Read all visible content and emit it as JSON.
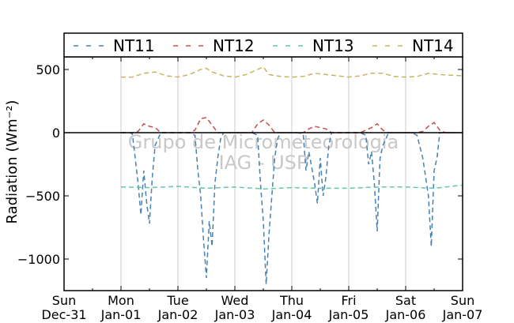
{
  "chart_data": {
    "type": "line",
    "ylabel": "Radiation (Wm⁻²)",
    "ylim": [
      -1250,
      600
    ],
    "xlim": [
      0,
      7
    ],
    "y_ticks": [
      500,
      0,
      -500,
      -1000
    ],
    "y_tick_labels": [
      "500",
      "0",
      "−500",
      "−1000"
    ],
    "x_ticks": [
      {
        "x": 0,
        "day": "Sun",
        "date": "Dec-31"
      },
      {
        "x": 1,
        "day": "Mon",
        "date": "Jan-01"
      },
      {
        "x": 2,
        "day": "Tue",
        "date": "Jan-02"
      },
      {
        "x": 3,
        "day": "Wed",
        "date": "Jan-03"
      },
      {
        "x": 4,
        "day": "Thu",
        "date": "Jan-04"
      },
      {
        "x": 5,
        "day": "Fri",
        "date": "Jan-05"
      },
      {
        "x": 6,
        "day": "Sat",
        "date": "Jan-06"
      },
      {
        "x": 7,
        "day": "Sun",
        "date": "Jan-07"
      }
    ],
    "grid": "vertical",
    "legend_position": "top",
    "watermark": [
      "Grupo de Micrometeorologia",
      "IAG - USP"
    ],
    "series": [
      {
        "name": "NT11",
        "color": "#4682b4",
        "x": [
          1.0,
          1.05,
          1.1,
          1.15,
          1.2,
          1.25,
          1.3,
          1.35,
          1.4,
          1.45,
          1.5,
          1.55,
          1.6,
          1.7,
          1.8,
          1.9,
          2.0,
          2.1,
          2.2,
          2.3,
          2.35,
          2.4,
          2.45,
          2.5,
          2.55,
          2.6,
          2.65,
          2.7,
          2.75,
          2.8,
          2.9,
          3.0,
          3.1,
          3.2,
          3.3,
          3.4,
          3.45,
          3.5,
          3.55,
          3.6,
          3.65,
          3.7,
          3.75,
          3.8,
          3.9,
          4.0,
          4.1,
          4.2,
          4.25,
          4.3,
          4.4,
          4.45,
          4.5,
          4.55,
          4.6,
          4.65,
          4.7,
          4.8,
          4.9,
          5.0,
          5.1,
          5.2,
          5.3,
          5.35,
          5.4,
          5.45,
          5.5,
          5.55,
          5.6,
          5.7,
          5.8,
          5.9,
          6.0,
          6.1,
          6.2,
          6.3,
          6.35,
          6.4,
          6.45,
          6.5,
          6.55,
          6.6,
          6.7,
          6.8,
          6.9,
          7.0
        ],
        "values": [
          0,
          0,
          0,
          0,
          -10,
          -200,
          -400,
          -650,
          -300,
          -550,
          -720,
          -350,
          -100,
          0,
          0,
          0,
          0,
          0,
          0,
          -20,
          -300,
          -500,
          -850,
          -1150,
          -700,
          -900,
          -400,
          -200,
          -50,
          0,
          0,
          0,
          0,
          0,
          0,
          -20,
          -400,
          -700,
          -1200,
          -800,
          -500,
          -200,
          -50,
          0,
          0,
          0,
          0,
          -10,
          -300,
          -150,
          -400,
          -560,
          -200,
          -500,
          -350,
          -100,
          0,
          0,
          0,
          0,
          0,
          0,
          -20,
          -250,
          -150,
          -400,
          -780,
          -200,
          -100,
          0,
          0,
          0,
          0,
          0,
          -20,
          -200,
          -350,
          -500,
          -900,
          -300,
          -200,
          0,
          0,
          0,
          0,
          0
        ]
      },
      {
        "name": "NT12",
        "color": "#c44e52",
        "x": [
          1.0,
          1.1,
          1.2,
          1.3,
          1.4,
          1.5,
          1.6,
          1.7,
          1.8,
          1.9,
          2.0,
          2.1,
          2.2,
          2.3,
          2.4,
          2.5,
          2.6,
          2.7,
          2.8,
          2.9,
          3.0,
          3.1,
          3.2,
          3.3,
          3.4,
          3.5,
          3.6,
          3.7,
          3.8,
          3.9,
          4.0,
          4.1,
          4.2,
          4.3,
          4.4,
          4.5,
          4.6,
          4.7,
          4.8,
          4.9,
          5.0,
          5.1,
          5.2,
          5.3,
          5.4,
          5.5,
          5.6,
          5.7,
          5.8,
          5.9,
          6.0,
          6.1,
          6.2,
          6.3,
          6.4,
          6.5,
          6.6,
          6.7,
          6.8,
          6.9,
          7.0
        ],
        "values": [
          0,
          0,
          0,
          10,
          70,
          50,
          40,
          0,
          0,
          0,
          0,
          0,
          0,
          20,
          110,
          120,
          60,
          0,
          0,
          0,
          0,
          0,
          0,
          0,
          70,
          100,
          60,
          0,
          0,
          0,
          0,
          0,
          0,
          30,
          50,
          40,
          30,
          0,
          0,
          0,
          0,
          0,
          0,
          20,
          40,
          70,
          20,
          0,
          0,
          0,
          0,
          0,
          0,
          10,
          50,
          80,
          20,
          0,
          0,
          0,
          0
        ]
      },
      {
        "name": "NT13",
        "color": "#64c8a8",
        "x": [
          1.0,
          1.5,
          2.0,
          2.5,
          3.0,
          3.5,
          4.0,
          4.5,
          5.0,
          5.5,
          6.0,
          6.5,
          7.0
        ],
        "values": [
          -430,
          -435,
          -425,
          -440,
          -430,
          -445,
          -435,
          -440,
          -440,
          -430,
          -430,
          -440,
          -415
        ]
      },
      {
        "name": "NT14",
        "color": "#c8b464",
        "x": [
          1.0,
          1.2,
          1.4,
          1.6,
          1.8,
          2.0,
          2.2,
          2.4,
          2.5,
          2.6,
          2.8,
          3.0,
          3.2,
          3.4,
          3.5,
          3.6,
          3.8,
          4.0,
          4.2,
          4.4,
          4.6,
          4.8,
          5.0,
          5.2,
          5.4,
          5.6,
          5.8,
          6.0,
          6.2,
          6.4,
          6.6,
          6.8,
          7.0
        ],
        "values": [
          440,
          440,
          470,
          480,
          450,
          440,
          460,
          500,
          510,
          480,
          450,
          440,
          460,
          500,
          520,
          460,
          445,
          440,
          445,
          470,
          460,
          450,
          440,
          450,
          470,
          470,
          445,
          440,
          445,
          470,
          460,
          455,
          450
        ]
      }
    ]
  }
}
